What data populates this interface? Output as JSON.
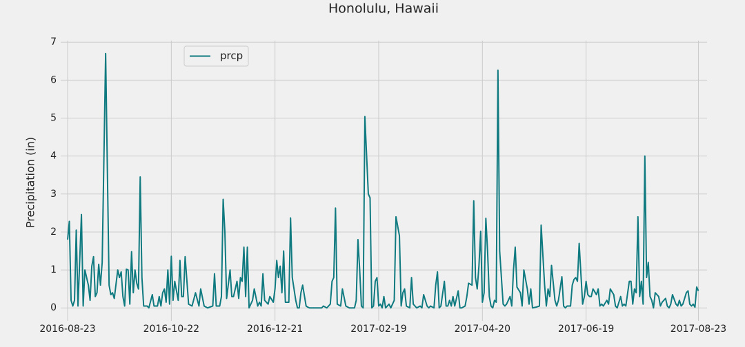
{
  "chart_data": {
    "type": "line",
    "title": "Honolulu, Hawaii",
    "ylabel": "Precipitation (in)",
    "x": [
      "2016-08-23",
      "2016-08-24",
      "2016-08-25",
      "2016-08-26",
      "2016-08-27",
      "2016-08-28",
      "2016-08-29",
      "2016-08-31",
      "2016-09-01",
      "2016-09-02",
      "2016-09-04",
      "2016-09-05",
      "2016-09-06",
      "2016-09-07",
      "2016-09-08",
      "2016-09-09",
      "2016-09-10",
      "2016-09-11",
      "2016-09-12",
      "2016-09-14",
      "2016-09-16",
      "2016-09-17",
      "2016-09-18",
      "2016-09-19",
      "2016-09-21",
      "2016-09-22",
      "2016-09-23",
      "2016-09-24",
      "2016-09-25",
      "2016-09-26",
      "2016-09-27",
      "2016-09-28",
      "2016-09-29",
      "2016-09-30",
      "2016-10-01",
      "2016-10-02",
      "2016-10-03",
      "2016-10-04",
      "2016-10-05",
      "2016-10-06",
      "2016-10-08",
      "2016-10-09",
      "2016-10-11",
      "2016-10-12",
      "2016-10-14",
      "2016-10-15",
      "2016-10-16",
      "2016-10-17",
      "2016-10-18",
      "2016-10-19",
      "2016-10-20",
      "2016-10-21",
      "2016-10-22",
      "2016-10-23",
      "2016-10-24",
      "2016-10-26",
      "2016-10-27",
      "2016-10-28",
      "2016-10-29",
      "2016-10-30",
      "2016-11-01",
      "2016-11-03",
      "2016-11-05",
      "2016-11-07",
      "2016-11-08",
      "2016-11-10",
      "2016-11-12",
      "2016-11-15",
      "2016-11-16",
      "2016-11-17",
      "2016-11-19",
      "2016-11-20",
      "2016-11-21",
      "2016-11-22",
      "2016-11-23",
      "2016-11-25",
      "2016-11-26",
      "2016-11-27",
      "2016-11-29",
      "2016-11-30",
      "2016-12-01",
      "2016-12-02",
      "2016-12-03",
      "2016-12-04",
      "2016-12-05",
      "2016-12-06",
      "2016-12-08",
      "2016-12-09",
      "2016-12-11",
      "2016-12-12",
      "2016-12-13",
      "2016-12-14",
      "2016-12-15",
      "2016-12-17",
      "2016-12-18",
      "2016-12-20",
      "2016-12-21",
      "2016-12-22",
      "2016-12-23",
      "2016-12-24",
      "2016-12-25",
      "2016-12-26",
      "2016-12-27",
      "2016-12-29",
      "2016-12-30",
      "2016-12-31",
      "2017-01-02",
      "2017-01-03",
      "2017-01-04",
      "2017-01-05",
      "2017-01-06",
      "2017-01-08",
      "2017-01-09",
      "2017-01-10",
      "2017-01-14",
      "2017-01-17",
      "2017-01-18",
      "2017-01-20",
      "2017-01-22",
      "2017-01-23",
      "2017-01-24",
      "2017-01-25",
      "2017-01-26",
      "2017-01-28",
      "2017-01-29",
      "2017-01-31",
      "2017-02-02",
      "2017-02-05",
      "2017-02-06",
      "2017-02-07",
      "2017-02-08",
      "2017-02-09",
      "2017-02-10",
      "2017-02-11",
      "2017-02-13",
      "2017-02-14",
      "2017-02-15",
      "2017-02-16",
      "2017-02-17",
      "2017-02-18",
      "2017-02-19",
      "2017-02-20",
      "2017-02-21",
      "2017-02-22",
      "2017-02-23",
      "2017-02-25",
      "2017-02-26",
      "2017-02-28",
      "2017-03-01",
      "2017-03-03",
      "2017-03-04",
      "2017-03-05",
      "2017-03-06",
      "2017-03-07",
      "2017-03-09",
      "2017-03-10",
      "2017-03-11",
      "2017-03-12",
      "2017-03-13",
      "2017-03-15",
      "2017-03-16",
      "2017-03-17",
      "2017-03-19",
      "2017-03-20",
      "2017-03-21",
      "2017-03-23",
      "2017-03-24",
      "2017-03-25",
      "2017-03-26",
      "2017-03-27",
      "2017-03-29",
      "2017-03-30",
      "2017-03-31",
      "2017-04-01",
      "2017-04-02",
      "2017-04-03",
      "2017-04-04",
      "2017-04-06",
      "2017-04-07",
      "2017-04-08",
      "2017-04-10",
      "2017-04-11",
      "2017-04-12",
      "2017-04-14",
      "2017-04-15",
      "2017-04-16",
      "2017-04-17",
      "2017-04-18",
      "2017-04-19",
      "2017-04-20",
      "2017-04-21",
      "2017-04-22",
      "2017-04-23",
      "2017-04-24",
      "2017-04-25",
      "2017-04-26",
      "2017-04-27",
      "2017-04-28",
      "2017-04-29",
      "2017-04-30",
      "2017-05-02",
      "2017-05-03",
      "2017-05-04",
      "2017-05-06",
      "2017-05-07",
      "2017-05-08",
      "2017-05-09",
      "2017-05-10",
      "2017-05-12",
      "2017-05-13",
      "2017-05-14",
      "2017-05-16",
      "2017-05-17",
      "2017-05-18",
      "2017-05-19",
      "2017-05-21",
      "2017-05-23",
      "2017-05-24",
      "2017-05-26",
      "2017-05-27",
      "2017-05-28",
      "2017-05-29",
      "2017-05-30",
      "2017-06-01",
      "2017-06-02",
      "2017-06-03",
      "2017-06-05",
      "2017-06-06",
      "2017-06-07",
      "2017-06-08",
      "2017-06-10",
      "2017-06-11",
      "2017-06-12",
      "2017-06-13",
      "2017-06-14",
      "2017-06-15",
      "2017-06-17",
      "2017-06-18",
      "2017-06-19",
      "2017-06-20",
      "2017-06-21",
      "2017-06-22",
      "2017-06-23",
      "2017-06-25",
      "2017-06-26",
      "2017-06-27",
      "2017-06-28",
      "2017-06-29",
      "2017-07-01",
      "2017-07-02",
      "2017-07-03",
      "2017-07-05",
      "2017-07-06",
      "2017-07-07",
      "2017-07-09",
      "2017-07-10",
      "2017-07-11",
      "2017-07-12",
      "2017-07-14",
      "2017-07-15",
      "2017-07-16",
      "2017-07-17",
      "2017-07-18",
      "2017-07-19",
      "2017-07-20",
      "2017-07-21",
      "2017-07-22",
      "2017-07-23",
      "2017-07-24",
      "2017-07-25",
      "2017-07-26",
      "2017-07-27",
      "2017-07-28",
      "2017-07-29",
      "2017-07-30",
      "2017-07-31",
      "2017-08-01",
      "2017-08-02",
      "2017-08-04",
      "2017-08-05",
      "2017-08-06",
      "2017-08-07",
      "2017-08-08",
      "2017-08-10",
      "2017-08-11",
      "2017-08-12",
      "2017-08-13",
      "2017-08-14",
      "2017-08-16",
      "2017-08-17",
      "2017-08-18",
      "2017-08-19",
      "2017-08-20",
      "2017-08-21",
      "2017-08-22",
      "2017-08-23"
    ],
    "series": [
      {
        "name": "prcp",
        "color": "#0f7a80",
        "values": [
          1.8,
          2.28,
          0.2,
          0.05,
          0.2,
          2.05,
          0.05,
          2.46,
          0.05,
          1.0,
          0.6,
          0.2,
          1.1,
          1.35,
          0.3,
          0.4,
          1.15,
          0.6,
          1.2,
          6.7,
          0.6,
          0.35,
          0.4,
          0.25,
          1.0,
          0.8,
          0.95,
          0.3,
          0.05,
          1.02,
          1.0,
          0.1,
          1.48,
          0.4,
          1.0,
          0.65,
          0.5,
          3.45,
          0.8,
          0.05,
          0.05,
          0.0,
          0.35,
          0.05,
          0.05,
          0.3,
          0.05,
          0.4,
          0.5,
          0.15,
          1.0,
          0.1,
          1.36,
          0.2,
          0.7,
          0.2,
          1.25,
          0.3,
          0.3,
          1.35,
          0.1,
          0.05,
          0.4,
          0.05,
          0.5,
          0.05,
          0.0,
          0.05,
          0.9,
          0.05,
          0.05,
          0.3,
          2.86,
          2.0,
          0.25,
          1.0,
          0.3,
          0.3,
          0.7,
          0.25,
          0.8,
          0.7,
          1.6,
          0.3,
          1.6,
          0.0,
          0.2,
          0.5,
          0.05,
          0.15,
          0.05,
          0.9,
          0.2,
          0.1,
          0.3,
          0.15,
          0.5,
          1.25,
          0.8,
          1.1,
          0.4,
          1.5,
          0.15,
          0.15,
          2.37,
          0.8,
          0.2,
          0.0,
          0.0,
          0.4,
          0.6,
          0.05,
          0.02,
          0.0,
          0.0,
          0.0,
          0.05,
          0.0,
          0.1,
          0.7,
          0.8,
          2.63,
          0.1,
          0.05,
          0.5,
          0.05,
          0.0,
          0.0,
          0.2,
          1.8,
          1.0,
          0.05,
          0.0,
          5.04,
          3.0,
          2.9,
          0.0,
          0.05,
          0.7,
          0.8,
          0.05,
          0.1,
          0.0,
          0.3,
          0.0,
          0.1,
          0.0,
          0.2,
          2.4,
          1.9,
          0.05,
          0.4,
          0.5,
          0.05,
          0.0,
          0.8,
          0.1,
          0.05,
          0.0,
          0.05,
          0.0,
          0.35,
          0.05,
          0.0,
          0.05,
          0.0,
          0.6,
          0.95,
          0.0,
          0.05,
          0.7,
          0.05,
          0.05,
          0.2,
          0.05,
          0.3,
          0.05,
          0.45,
          0.0,
          0.0,
          0.05,
          0.3,
          0.65,
          0.6,
          2.82,
          0.8,
          0.5,
          1.1,
          2.02,
          0.15,
          0.4,
          2.36,
          1.5,
          0.3,
          0.05,
          0.0,
          0.2,
          0.15,
          6.26,
          1.5,
          0.1,
          0.05,
          0.1,
          0.3,
          0.05,
          1.0,
          1.6,
          0.55,
          0.4,
          0.05,
          1.0,
          0.5,
          0.1,
          0.5,
          0.0,
          0.02,
          0.05,
          2.18,
          0.6,
          0.05,
          0.5,
          0.3,
          1.12,
          0.2,
          0.05,
          0.2,
          0.82,
          0.05,
          0.0,
          0.05,
          0.05,
          0.6,
          0.75,
          0.8,
          0.7,
          1.7,
          0.1,
          0.3,
          0.7,
          0.35,
          0.3,
          0.3,
          0.5,
          0.35,
          0.5,
          0.05,
          0.1,
          0.05,
          0.2,
          0.1,
          0.5,
          0.35,
          0.05,
          0.0,
          0.3,
          0.05,
          0.1,
          0.05,
          0.7,
          0.7,
          0.1,
          0.5,
          0.4,
          2.4,
          0.3,
          0.7,
          0.1,
          4.0,
          0.8,
          1.2,
          0.3,
          0.2,
          0.0,
          0.4,
          0.35,
          0.3,
          0.05,
          0.15,
          0.25,
          0.05,
          0.0,
          0.1,
          0.35,
          0.1,
          0.05,
          0.2,
          0.05,
          0.1,
          0.4,
          0.45,
          0.1,
          0.05,
          0.1,
          0.02,
          0.55,
          0.45
        ]
      }
    ],
    "xlim": [
      "2016-08-19",
      "2017-08-28"
    ],
    "xticks": [
      "2016-08-23",
      "2016-10-22",
      "2016-12-21",
      "2017-02-19",
      "2017-04-20",
      "2017-06-19",
      "2017-08-23"
    ],
    "ylim": [
      -0.34,
      7.04
    ],
    "yticks": [
      0,
      1,
      2,
      3,
      4,
      5,
      6,
      7
    ],
    "grid": true,
    "legend": "upper left"
  }
}
